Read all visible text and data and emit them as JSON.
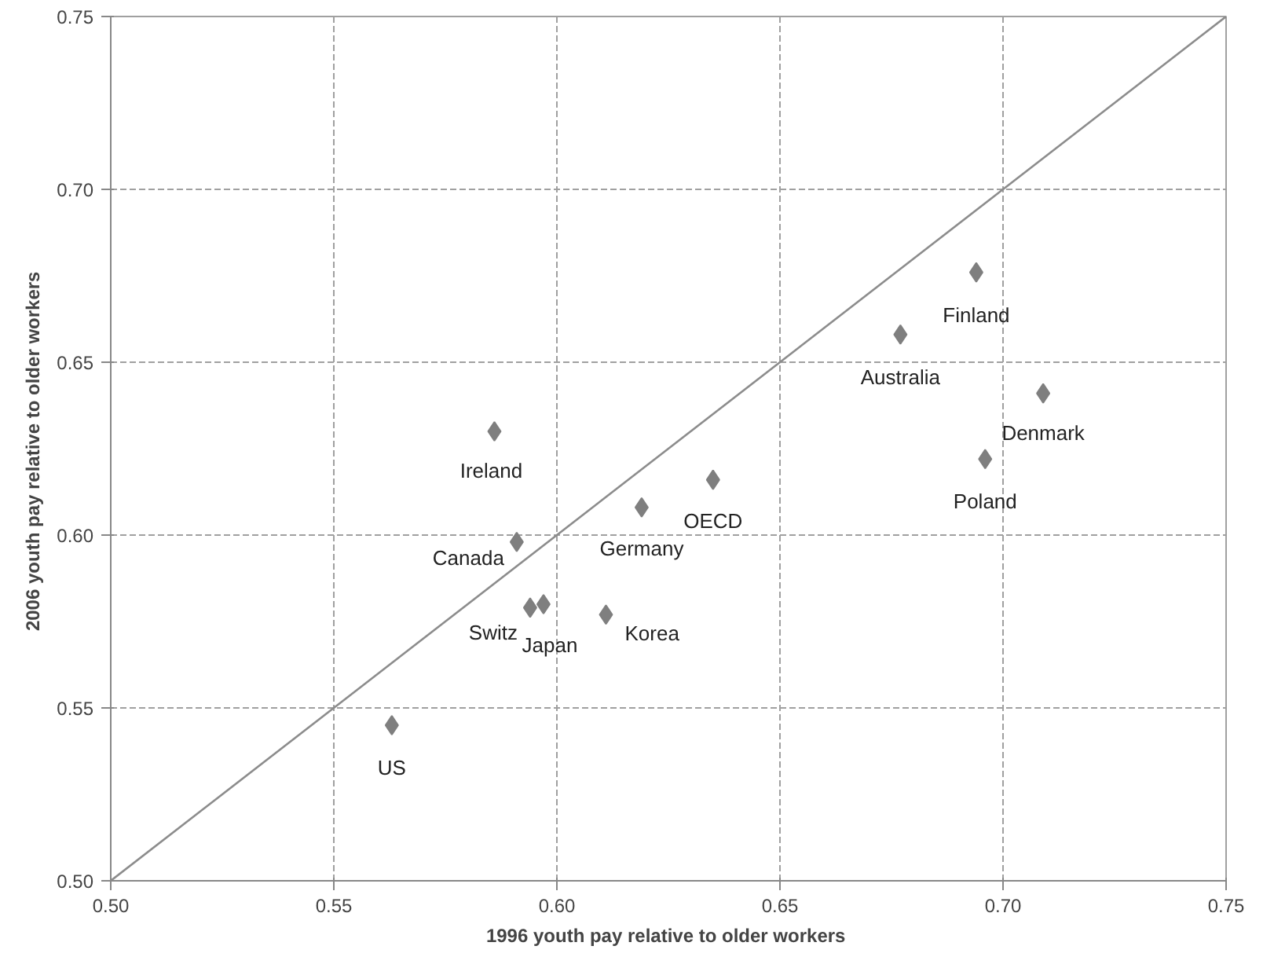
{
  "chart_data": {
    "type": "scatter",
    "xlabel": "1996 youth pay  relative to older workers",
    "ylabel": "2006 youth pay  relative to older workers",
    "xlim": [
      0.5,
      0.75
    ],
    "ylim": [
      0.5,
      0.75
    ],
    "xticks": [
      {
        "value": 0.5,
        "label": "0.50"
      },
      {
        "value": 0.55,
        "label": "0.55"
      },
      {
        "value": 0.6,
        "label": "0.60"
      },
      {
        "value": 0.65,
        "label": "0.65"
      },
      {
        "value": 0.7,
        "label": "0.70"
      },
      {
        "value": 0.75,
        "label": "0.75"
      }
    ],
    "yticks": [
      {
        "value": 0.5,
        "label": "0.50"
      },
      {
        "value": 0.55,
        "label": "0.55"
      },
      {
        "value": 0.6,
        "label": "0.60"
      },
      {
        "value": 0.65,
        "label": "0.65"
      },
      {
        "value": 0.7,
        "label": "0.70"
      },
      {
        "value": 0.75,
        "label": "0.75"
      }
    ],
    "grid": true,
    "marker": "diamond",
    "series": [
      {
        "color": "#7f7f7f",
        "x": [
          0.586,
          0.591,
          0.594,
          0.597,
          0.611,
          0.619,
          0.635,
          0.563,
          0.694,
          0.677,
          0.709,
          0.696
        ],
        "values": [
          0.63,
          0.598,
          0.579,
          0.58,
          0.577,
          0.608,
          0.616,
          0.545,
          0.676,
          0.658,
          0.641,
          0.622
        ]
      },
      {
        "type": "line",
        "color": "#8c8c8c",
        "x": [
          0.5,
          0.75
        ],
        "values": [
          0.5,
          0.75
        ],
        "marker": "none"
      }
    ],
    "annotations": [
      {
        "text": "Ireland",
        "x": 0.586,
        "y": 0.63
      },
      {
        "text": "Canada",
        "x": 0.591,
        "y": 0.598
      },
      {
        "text": "Switz",
        "x": 0.594,
        "y": 0.579
      },
      {
        "text": "Japan",
        "x": 0.597,
        "y": 0.58
      },
      {
        "text": "Korea",
        "x": 0.611,
        "y": 0.577
      },
      {
        "text": "Germany",
        "x": 0.619,
        "y": 0.608
      },
      {
        "text": "OECD",
        "x": 0.635,
        "y": 0.616
      },
      {
        "text": "US",
        "x": 0.563,
        "y": 0.545
      },
      {
        "text": "Finland",
        "x": 0.694,
        "y": 0.676
      },
      {
        "text": "Australia",
        "x": 0.677,
        "y": 0.658
      },
      {
        "text": "Denmark",
        "x": 0.709,
        "y": 0.641
      },
      {
        "text": "Poland",
        "x": 0.696,
        "y": 0.622
      }
    ]
  }
}
